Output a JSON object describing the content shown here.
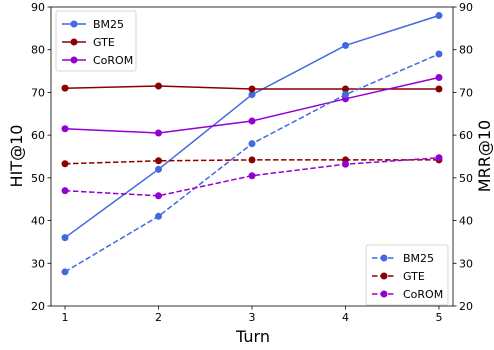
{
  "chart_data": {
    "type": "line",
    "title": "",
    "xlabel": "Turn",
    "ylabel_left": "HIT@10",
    "ylabel_right": "MRR@10",
    "x": [
      1,
      2,
      3,
      4,
      5
    ],
    "xlim": [
      0.85,
      5.15
    ],
    "ylim_left": [
      20,
      90
    ],
    "ylim_right": [
      20,
      90
    ],
    "yticks": [
      20,
      30,
      40,
      50,
      60,
      70,
      80,
      90
    ],
    "grid": false,
    "series_hit": [
      {
        "name": "BM25",
        "color": "#4169e1",
        "style": "solid",
        "values": [
          36,
          52,
          69.5,
          81,
          88
        ]
      },
      {
        "name": "GTE",
        "color": "#8b0000",
        "style": "solid",
        "values": [
          71,
          71.5,
          70.8,
          70.8,
          70.8
        ]
      },
      {
        "name": "CoROM",
        "color": "#9400d3",
        "style": "solid",
        "values": [
          61.5,
          60.5,
          63.3,
          68.5,
          73.5
        ]
      }
    ],
    "series_mrr": [
      {
        "name": "BM25",
        "color": "#4169e1",
        "style": "dashed",
        "values": [
          28,
          41,
          58,
          69.5,
          79
        ]
      },
      {
        "name": "GTE",
        "color": "#8b0000",
        "style": "dashed",
        "values": [
          53.3,
          54,
          54.2,
          54.2,
          54.2
        ]
      },
      {
        "name": "CoROM",
        "color": "#9400d3",
        "style": "dashed",
        "values": [
          47,
          45.8,
          50.5,
          53.2,
          54.7
        ]
      }
    ],
    "legend_left_position": "top-left",
    "legend_right_position": "bottom-right"
  }
}
